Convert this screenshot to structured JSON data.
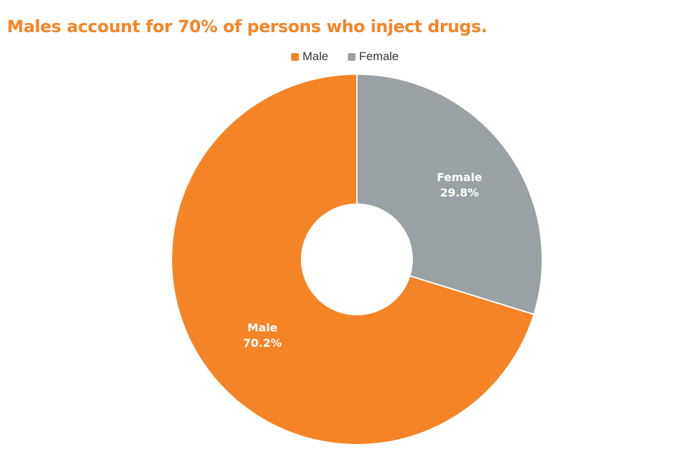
{
  "chart_data": {
    "type": "pie",
    "title": "Males account for 70% of persons who inject drugs.",
    "legend_position": "top",
    "slices": [
      {
        "name": "Male",
        "value": 70.2,
        "label": "70.2%",
        "color": "#f58426"
      },
      {
        "name": "Female",
        "value": 29.8,
        "label": "29.8%",
        "color": "#9aa1a4"
      }
    ]
  },
  "colors": {
    "title": "#f58426",
    "background": "#ffffff",
    "slice_border": "#ffffff"
  }
}
